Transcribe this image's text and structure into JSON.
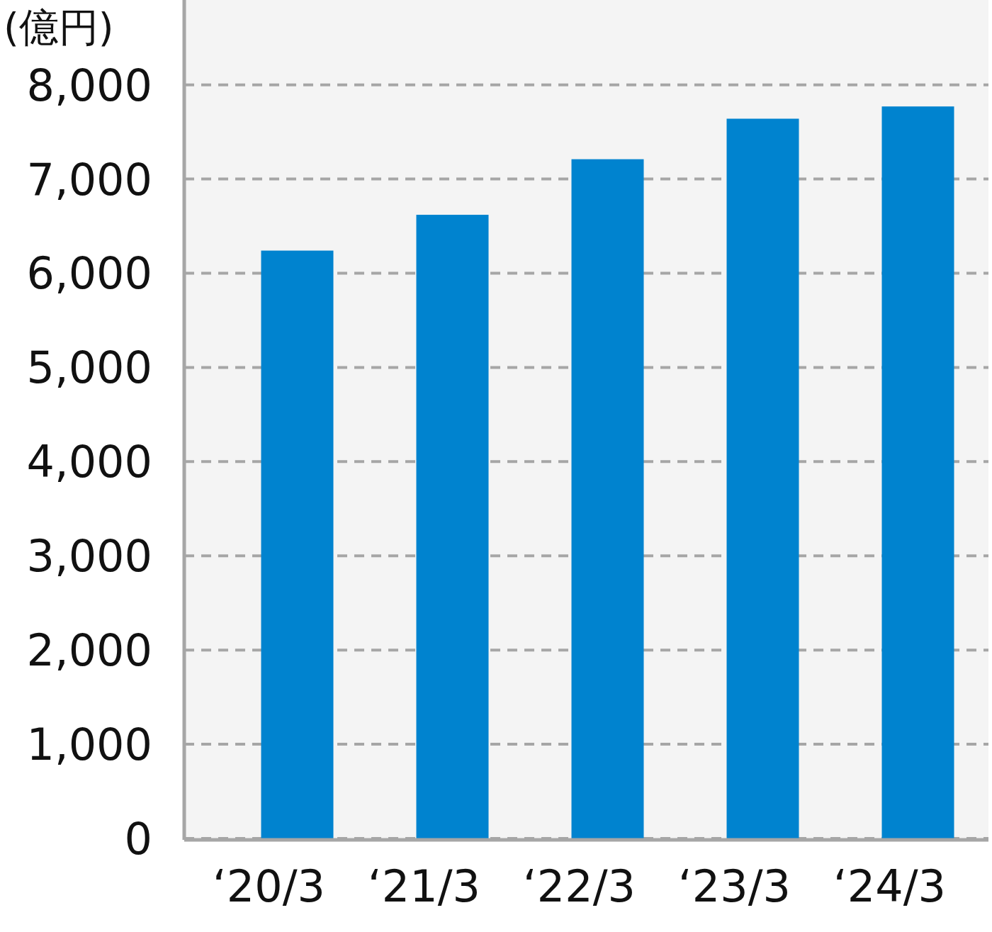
{
  "chart_data": {
    "type": "bar",
    "ylabel": "(億円)",
    "categories": [
      "‘20/3",
      "‘21/3",
      "‘22/3",
      "‘23/3",
      "‘24/3"
    ],
    "series": [
      {
        "color": "#0083cf",
        "values": [
          6240,
          6620,
          7210,
          7640,
          7770
        ]
      }
    ],
    "ylim": [
      0,
      8900
    ],
    "yticks": [
      0,
      {
        "value": 1000,
        "label": "1,000"
      },
      {
        "value": 2000,
        "label": "2,000"
      },
      {
        "value": 3000,
        "label": "3,000"
      },
      {
        "value": 4000,
        "label": "4,000"
      },
      {
        "value": 5000,
        "label": "5,000"
      },
      {
        "value": 6000,
        "label": "6,000"
      },
      {
        "value": 7000,
        "label": "7,000"
      },
      {
        "value": 8000,
        "label": "8,000"
      }
    ],
    "grid": "y",
    "line_style": "dashed"
  }
}
